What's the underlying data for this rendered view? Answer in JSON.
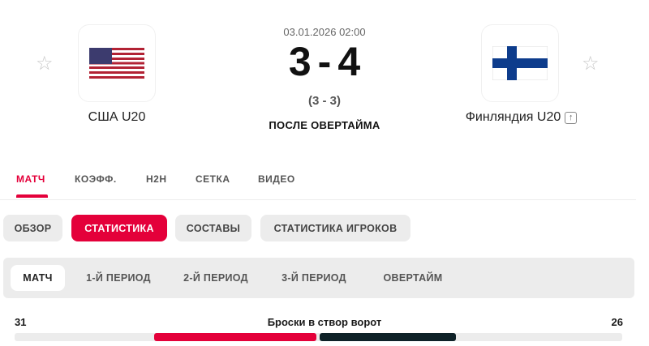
{
  "match": {
    "datetime": "03.01.2026 02:00",
    "score_home": "3",
    "score_sep": "-",
    "score_away": "4",
    "regular_score": "(3 - 3)",
    "status": "ПОСЛЕ ОВЕРТАЙМА",
    "home": {
      "name": "США U20",
      "flag": "usa-flag"
    },
    "away": {
      "name": "Финляндия U20",
      "flag": "finland-flag"
    }
  },
  "tabs": [
    {
      "label": "МАТЧ",
      "active": true
    },
    {
      "label": "КОЭФФ."
    },
    {
      "label": "H2H"
    },
    {
      "label": "СЕТКА"
    },
    {
      "label": "ВИДЕО"
    }
  ],
  "pills": [
    {
      "label": "ОБЗОР"
    },
    {
      "label": "СТАТИСТИКА",
      "active": true
    },
    {
      "label": "СОСТАВЫ"
    },
    {
      "label": "СТАТИСТИКА ИГРОКОВ"
    }
  ],
  "periods": [
    {
      "label": "МАТЧ",
      "active": true
    },
    {
      "label": "1-Й ПЕРИОД"
    },
    {
      "label": "2-Й ПЕРИОД"
    },
    {
      "label": "3-Й ПЕРИОД"
    },
    {
      "label": "ОВЕРТАЙМ"
    }
  ],
  "stats": [
    {
      "label": "Броски в створ ворот",
      "home": "31",
      "away": "26"
    }
  ],
  "colors": {
    "accent": "#e4003a",
    "dark": "#0f2228",
    "pill_bg": "#ececec"
  }
}
